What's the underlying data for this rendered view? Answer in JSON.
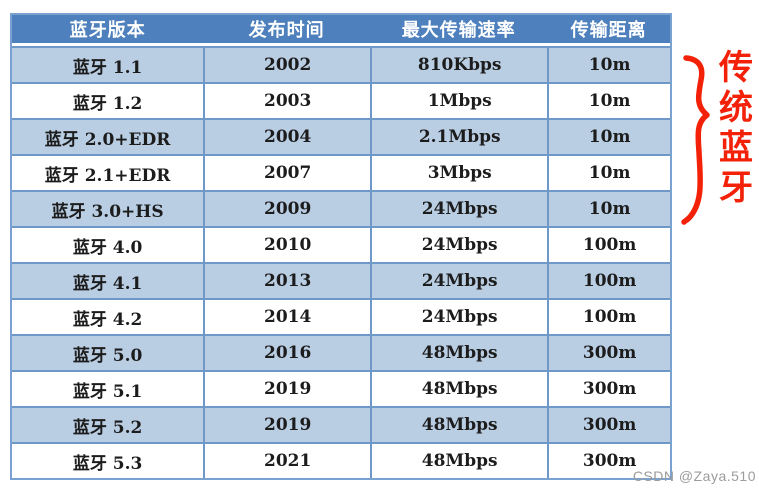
{
  "theme": {
    "header-bg": "#4d80bc",
    "header-text": "#ffffff",
    "row-bg": "#ffffff",
    "row-alt-bg": "#b9cde3",
    "inner-border": "#6d98c8",
    "outer-border": "#79a2d0",
    "cell-text": "#1c1c1c",
    "annotation-color": "#f42109",
    "watermark-color": "#9c9c9c"
  },
  "table": {
    "columns": [
      "蓝牙版本",
      "发布时间",
      "最大传输速率",
      "传输距离"
    ],
    "rows": [
      {
        "version": "蓝牙 1.1",
        "year": "2002",
        "speed": "810Kbps",
        "distance": "10m"
      },
      {
        "version": "蓝牙 1.2",
        "year": "2003",
        "speed": "1Mbps",
        "distance": "10m"
      },
      {
        "version": "蓝牙 2.0+EDR",
        "year": "2004",
        "speed": "2.1Mbps",
        "distance": "10m"
      },
      {
        "version": "蓝牙 2.1+EDR",
        "year": "2007",
        "speed": "3Mbps",
        "distance": "10m"
      },
      {
        "version": "蓝牙 3.0+HS",
        "year": "2009",
        "speed": "24Mbps",
        "distance": "10m"
      },
      {
        "version": "蓝牙 4.0",
        "year": "2010",
        "speed": "24Mbps",
        "distance": "100m"
      },
      {
        "version": "蓝牙 4.1",
        "year": "2013",
        "speed": "24Mbps",
        "distance": "100m"
      },
      {
        "version": "蓝牙 4.2",
        "year": "2014",
        "speed": "24Mbps",
        "distance": "100m"
      },
      {
        "version": "蓝牙 5.0",
        "year": "2016",
        "speed": "48Mbps",
        "distance": "300m"
      },
      {
        "version": "蓝牙 5.1",
        "year": "2019",
        "speed": "48Mbps",
        "distance": "300m"
      },
      {
        "version": "蓝牙 5.2",
        "year": "2019",
        "speed": "48Mbps",
        "distance": "300m"
      },
      {
        "version": "蓝牙 5.3",
        "year": "2021",
        "speed": "48Mbps",
        "distance": "300m"
      }
    ]
  },
  "annotation": {
    "text": "传统蓝牙"
  },
  "watermark": {
    "text": "CSDN @Zaya.510"
  }
}
